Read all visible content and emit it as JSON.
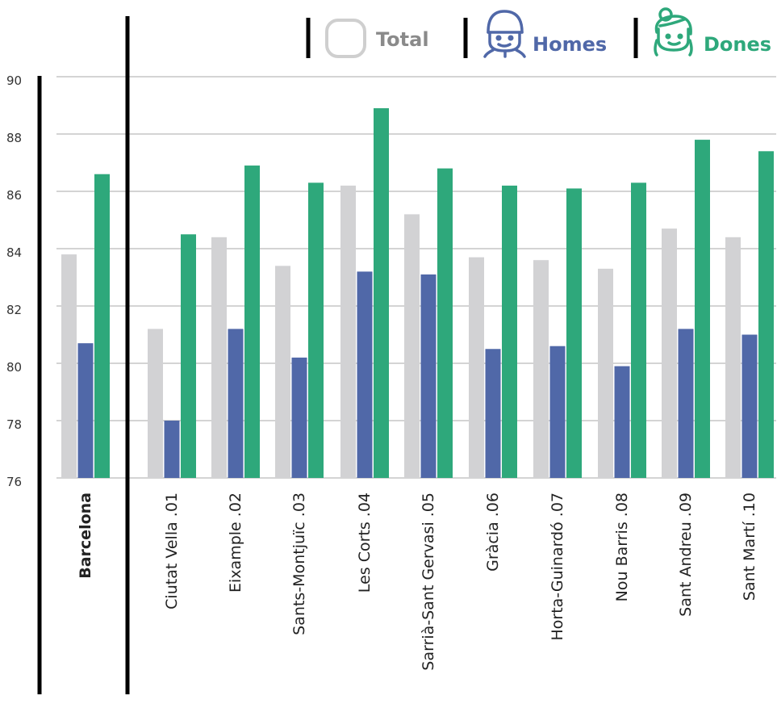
{
  "legend": [
    {
      "key": "total",
      "label": "Total",
      "color": "#8a8a8a",
      "icon": "blank-face-icon"
    },
    {
      "key": "homes",
      "label": "Homes",
      "color": "#5068a8",
      "icon": "man-face-icon"
    },
    {
      "key": "dones",
      "label": "Dones",
      "color": "#2ea87b",
      "icon": "woman-face-icon"
    }
  ],
  "colors": {
    "total": "#d2d2d4",
    "homes": "#5068a8",
    "dones": "#2ea87b",
    "grid": "#a9a9a9"
  },
  "chart_data": {
    "type": "bar",
    "title": "",
    "xlabel": "",
    "ylabel": "",
    "ylim": [
      76,
      90
    ],
    "yticks": [
      76,
      78,
      80,
      82,
      84,
      86,
      88,
      90
    ],
    "grid": true,
    "legend_position": "top-right",
    "categories": [
      "Barcelona",
      "Ciutat Vella .01",
      "Eixample .02",
      "Sants-Montjuïc .03",
      "Les Corts .04",
      "Sarrià-Sant Gervasi .05",
      "Gràcia .06",
      "Horta-Guinardó .07",
      "Nou Barris .08",
      "Sant Andreu .09",
      "Sant Martí .10"
    ],
    "series": [
      {
        "name": "Total",
        "values": [
          83.8,
          81.2,
          84.4,
          83.4,
          86.2,
          85.2,
          83.7,
          83.6,
          83.3,
          84.7,
          84.4
        ]
      },
      {
        "name": "Homes",
        "values": [
          80.7,
          78.0,
          81.2,
          80.2,
          83.2,
          83.1,
          80.5,
          80.6,
          79.9,
          81.2,
          81.0
        ]
      },
      {
        "name": "Dones",
        "values": [
          86.6,
          84.5,
          86.9,
          86.3,
          88.9,
          86.8,
          86.2,
          86.1,
          86.3,
          87.8,
          87.4
        ]
      }
    ]
  }
}
